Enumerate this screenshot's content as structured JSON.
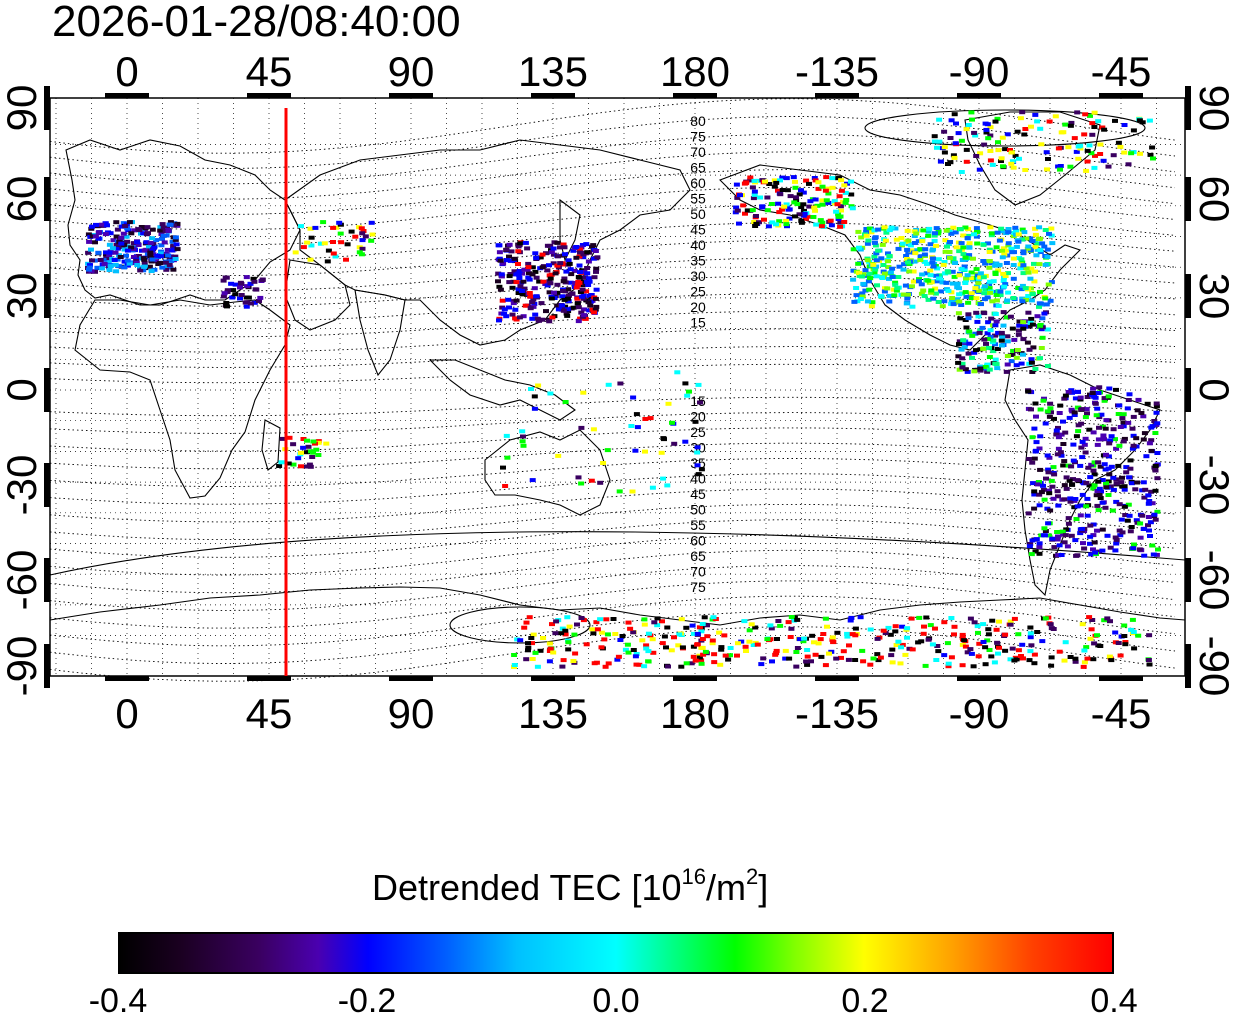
{
  "title": "2026-01-28/08:40:00",
  "map": {
    "x_ticks_top": [
      "0",
      "45",
      "90",
      "135",
      "180",
      "-135",
      "-90",
      "-45"
    ],
    "x_ticks_bottom": [
      "0",
      "45",
      "90",
      "135",
      "180",
      "-135",
      "-90",
      "-45"
    ],
    "y_ticks_left": [
      "90",
      "60",
      "30",
      "0",
      "-30",
      "-60",
      "-90"
    ],
    "y_ticks_right": [
      "90",
      "60",
      "30",
      "0",
      "-30",
      "-60",
      "-90"
    ],
    "contour_labels_north": [
      "80",
      "75",
      "70",
      "65",
      "60",
      "55",
      "50",
      "45",
      "40",
      "35",
      "30",
      "25",
      "20",
      "15"
    ],
    "contour_labels_south": [
      "15",
      "20",
      "25",
      "30",
      "35",
      "40",
      "45",
      "50",
      "55",
      "60",
      "65",
      "70",
      "75"
    ],
    "terminator_longitude": 50,
    "terminator_color": "#ff0000",
    "grid": "dotted",
    "x_range": [
      -20,
      340
    ],
    "y_range": [
      -90,
      90
    ]
  },
  "colorbar": {
    "label": "Detrended TEC  [10",
    "label_exp": "16",
    "label_unit": "/m",
    "label_unit_exp": "2",
    "label_end": "]",
    "ticks": [
      "-0.4",
      "-0.2",
      "0.0",
      "0.2",
      "0.4"
    ],
    "range": [
      -0.4,
      0.4
    ],
    "colormap": "black-purple-blue-cyan-green-yellow-red"
  }
}
